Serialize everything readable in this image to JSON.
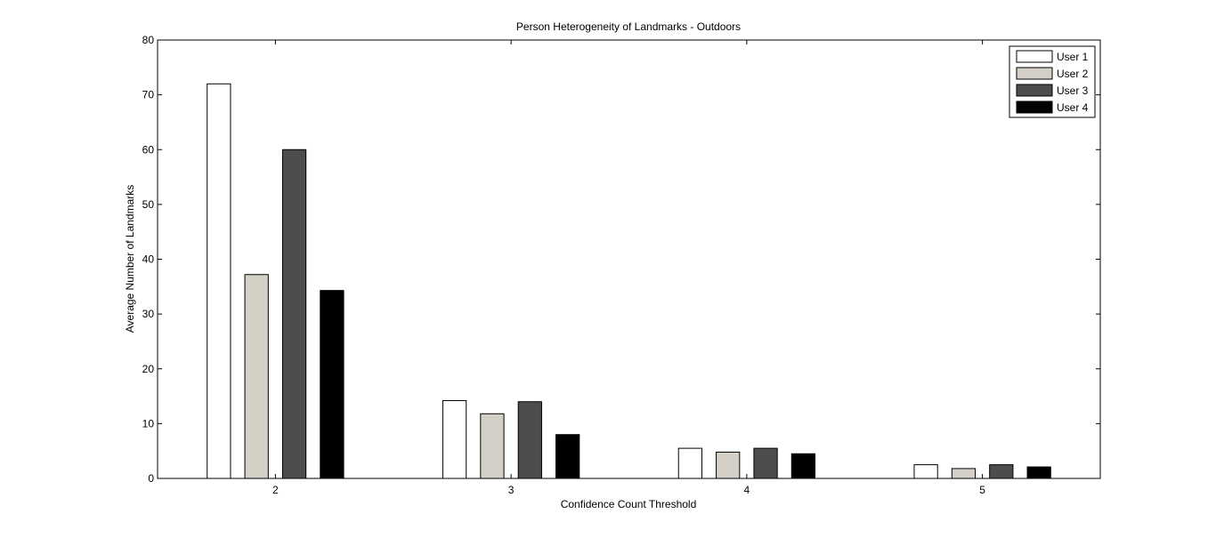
{
  "chart_data": {
    "type": "bar",
    "title": "Person Heterogeneity of Landmarks - Outdoors",
    "xlabel": "Confidence Count Threshold",
    "ylabel": "Average Number of Landmarks",
    "categories": [
      "2",
      "3",
      "4",
      "5"
    ],
    "ylim": [
      0,
      80
    ],
    "yticks": [
      0,
      10,
      20,
      30,
      40,
      50,
      60,
      70,
      80
    ],
    "grid": false,
    "legend_position": "top-right",
    "series": [
      {
        "name": "User 1",
        "color": "#ffffff",
        "values": [
          72,
          14.2,
          5.5,
          2.5
        ]
      },
      {
        "name": "User 2",
        "color": "#d4d0c8",
        "values": [
          37.2,
          11.8,
          4.8,
          1.8
        ]
      },
      {
        "name": "User 3",
        "color": "#4d4d4d",
        "values": [
          60,
          14,
          5.5,
          2.5
        ]
      },
      {
        "name": "User 4",
        "color": "#000000",
        "values": [
          34.3,
          8,
          4.5,
          2.1
        ]
      }
    ]
  }
}
